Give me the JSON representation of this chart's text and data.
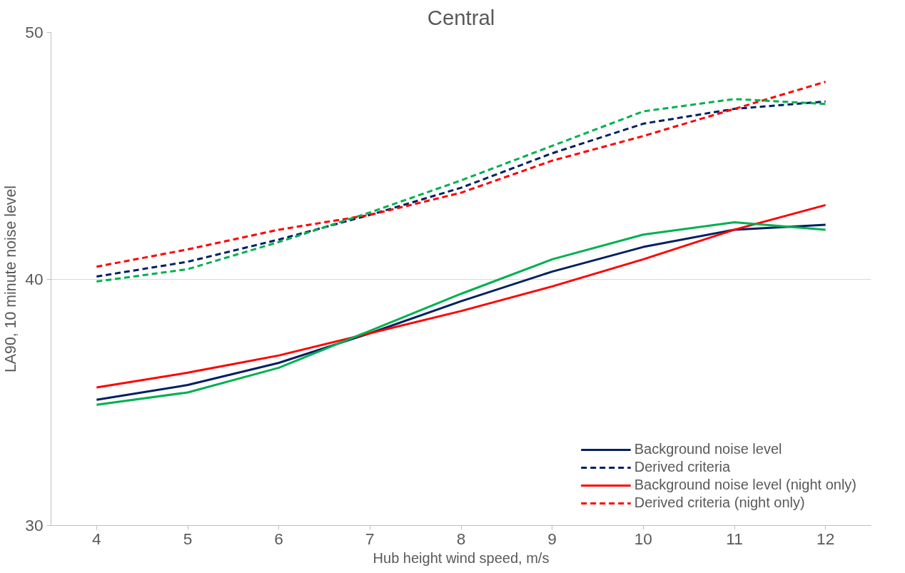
{
  "chart_data": {
    "type": "line",
    "title": "Central",
    "xlabel": "Hub height wind speed, m/s",
    "ylabel": "LA90, 10 minute noise level",
    "categories": [
      "4",
      "5",
      "6",
      "7",
      "8",
      "9",
      "10",
      "11",
      "12"
    ],
    "ylim": [
      30,
      50
    ],
    "yticks": [
      30,
      40,
      50
    ],
    "grid": "y",
    "legend": "bottom right",
    "marker": "none",
    "series": [
      {
        "name": "Background noise level",
        "color": "#002060",
        "line_style": "solid",
        "values": [
          35.1,
          35.7,
          36.6,
          37.8,
          39.1,
          40.3,
          41.3,
          42.0,
          42.2
        ]
      },
      {
        "name": "Derived criteria",
        "color": "#002060",
        "line_style": "dashed",
        "values": [
          40.1,
          40.7,
          41.6,
          42.6,
          43.7,
          45.1,
          46.3,
          46.9,
          47.2
        ]
      },
      {
        "name": "Background noise level (night only)",
        "color": "#ff0000",
        "line_style": "solid",
        "values": [
          35.6,
          36.2,
          36.9,
          37.8,
          38.7,
          39.7,
          40.8,
          42.0,
          43.0
        ]
      },
      {
        "name": "Derived criteria (night only)",
        "color": "#ff0000",
        "line_style": "dashed",
        "values": [
          40.5,
          41.2,
          42.0,
          42.6,
          43.5,
          44.8,
          45.8,
          46.9,
          48.0
        ]
      },
      {
        "color": "#00b050",
        "line_style": "solid",
        "values": [
          34.9,
          35.4,
          36.4,
          37.9,
          39.4,
          40.8,
          41.8,
          42.3,
          42.0
        ]
      },
      {
        "color": "#00b050",
        "line_style": "dashed",
        "values": [
          39.9,
          40.4,
          41.5,
          42.7,
          44.0,
          45.4,
          46.8,
          47.3,
          47.1
        ]
      }
    ]
  }
}
